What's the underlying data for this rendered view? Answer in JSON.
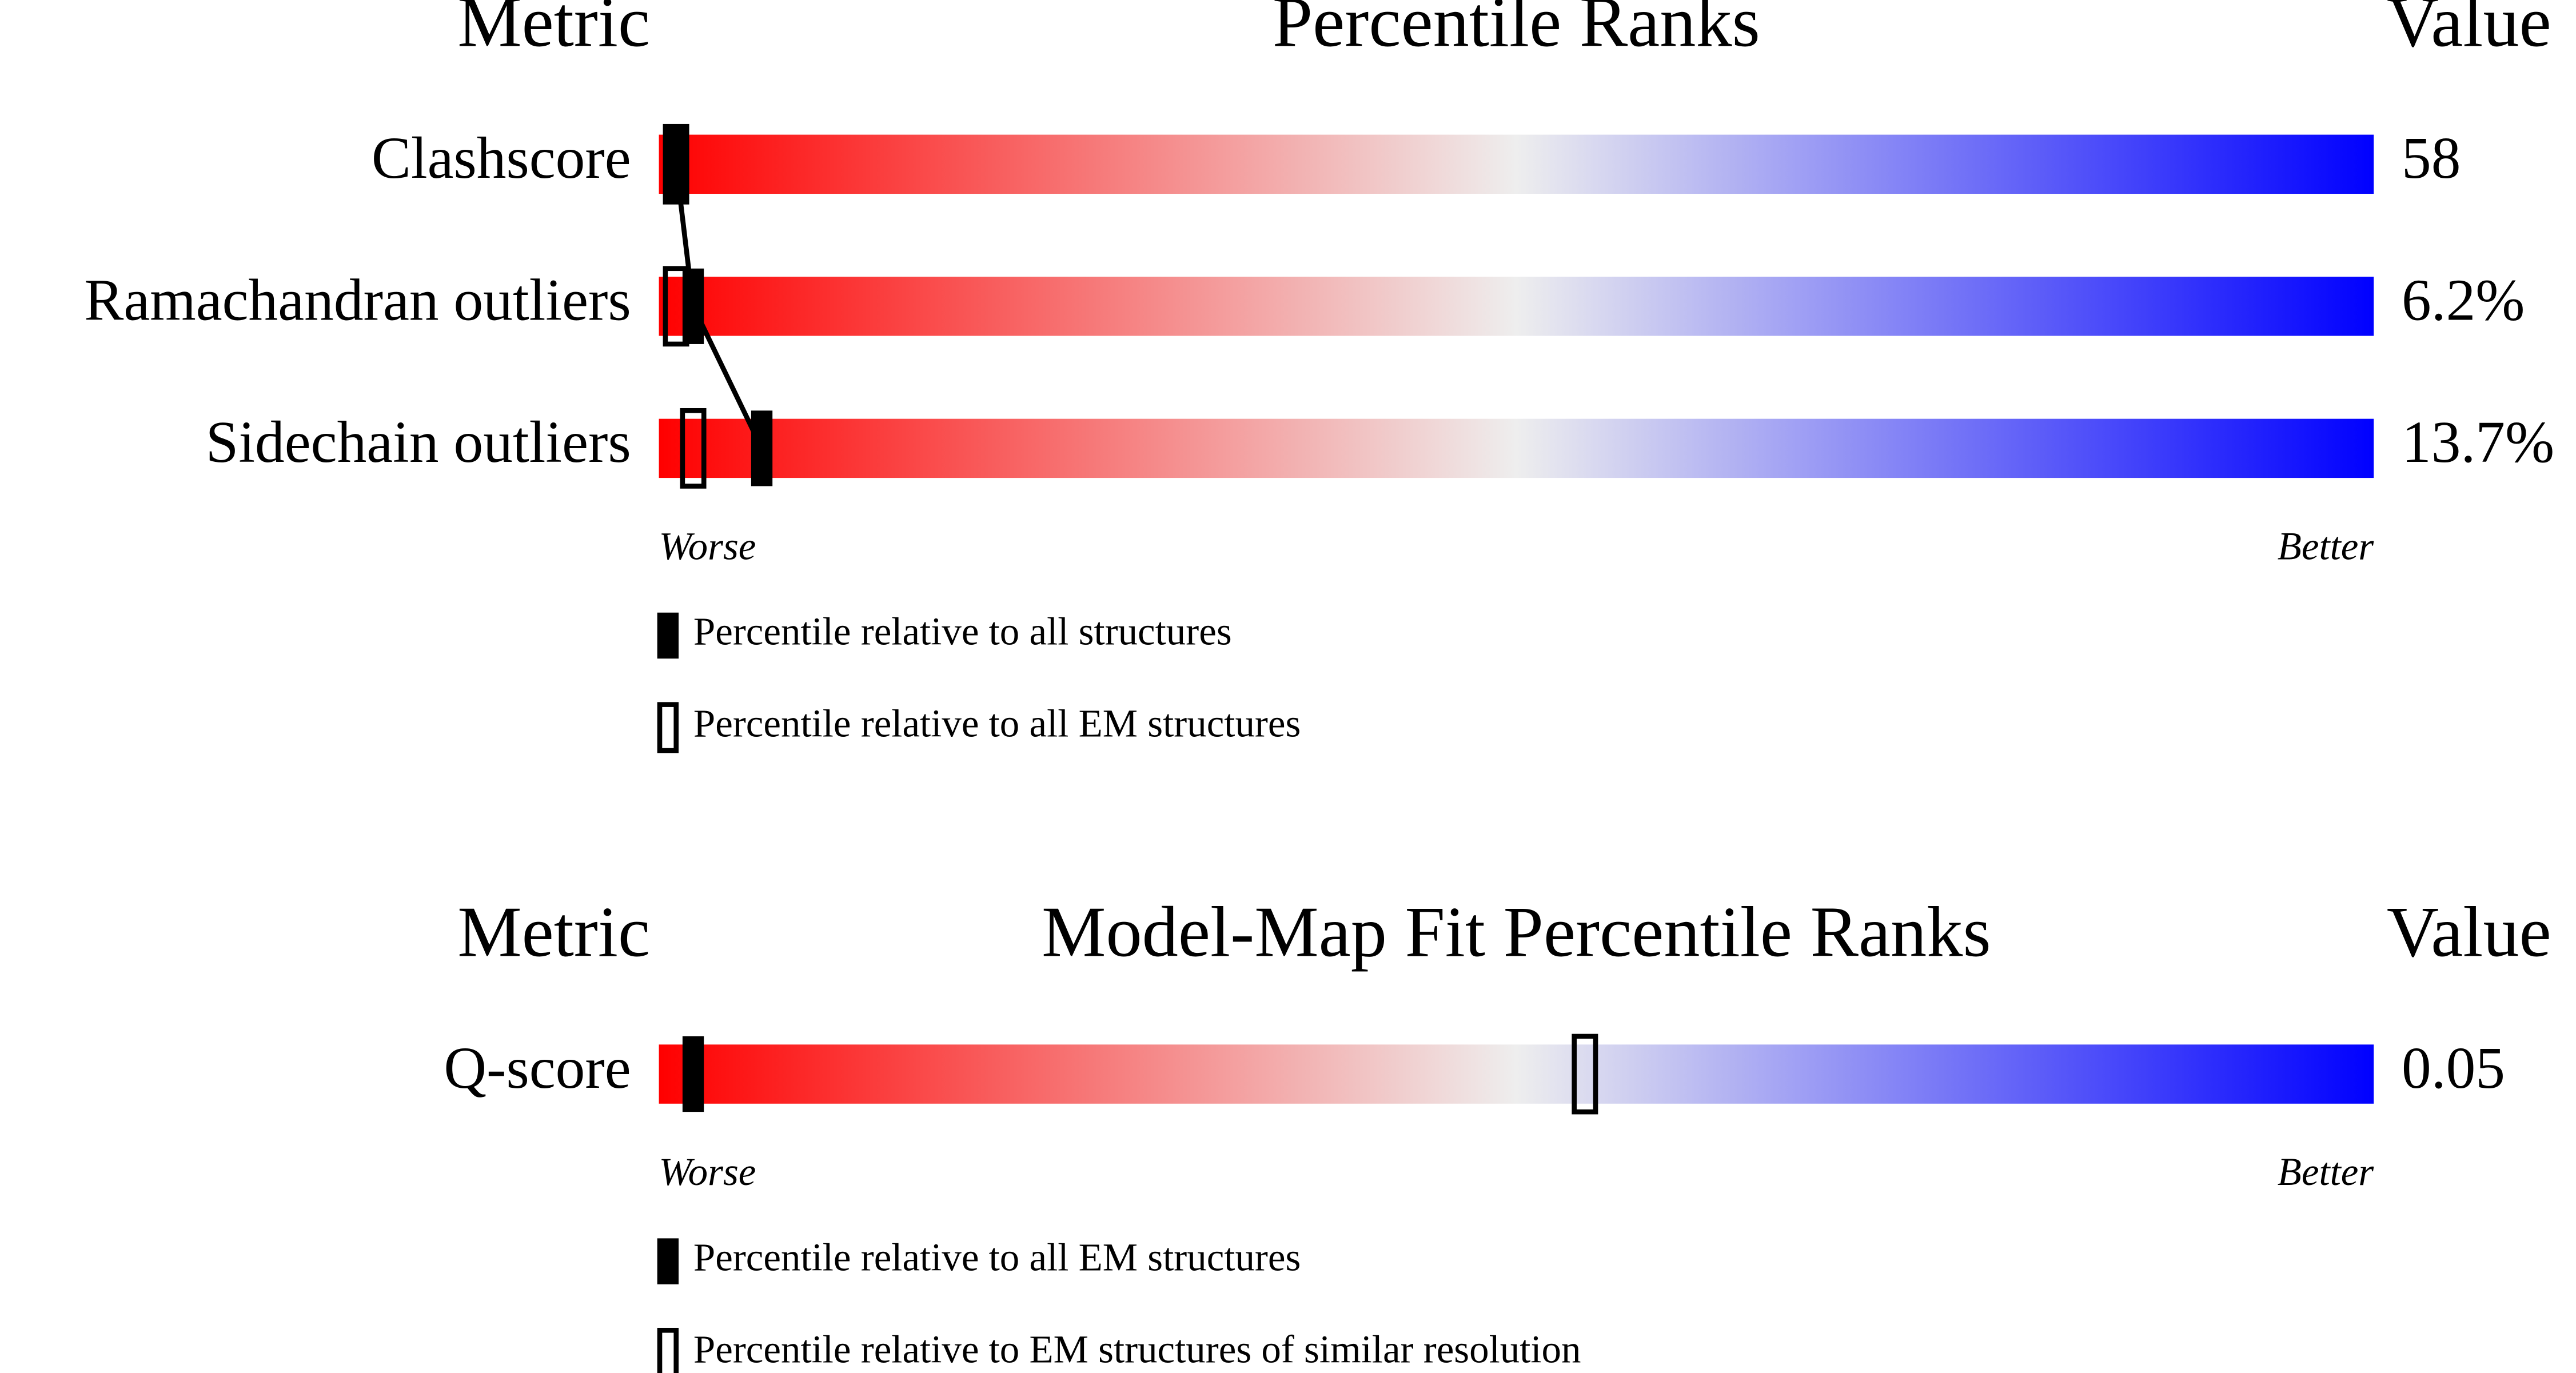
{
  "chart_data": [
    {
      "type": "percentile",
      "metric_header": "Metric",
      "title": "Percentile Ranks",
      "value_header": "Value",
      "xlim": [
        0,
        100
      ],
      "worse": "Worse",
      "better": "Better",
      "gradient": [
        "#ff0000",
        "#eeeeee",
        "#0000ff"
      ],
      "categories": [
        "Clashscore",
        "Ramachandran outliers",
        "Sidechain outliers"
      ],
      "values": [
        58,
        6.2,
        13.7
      ],
      "value_labels": [
        "58",
        "6.2%",
        "13.7%"
      ],
      "series": [
        {
          "name": "Percentile relative to all structures",
          "style": "filled",
          "color": "#000000",
          "values": [
            1,
            2,
            6
          ]
        },
        {
          "name": "Percentile relative to all EM structures",
          "style": "open",
          "color": "#000000",
          "values": [
            1,
            1,
            2
          ]
        }
      ]
    },
    {
      "type": "percentile",
      "metric_header": "Metric",
      "title": "Model-Map Fit Percentile Ranks",
      "value_header": "Value",
      "xlim": [
        0,
        100
      ],
      "worse": "Worse",
      "better": "Better",
      "gradient": [
        "#ff0000",
        "#eeeeee",
        "#0000ff"
      ],
      "categories": [
        "Q-score"
      ],
      "values": [
        0.05
      ],
      "value_labels": [
        "0.05"
      ],
      "series": [
        {
          "name": "Percentile relative to all EM structures",
          "style": "filled",
          "color": "#000000",
          "values": [
            2
          ]
        },
        {
          "name": "Percentile relative to EM structures of similar resolution",
          "style": "open",
          "color": "#000000",
          "values": [
            54
          ]
        }
      ]
    }
  ]
}
